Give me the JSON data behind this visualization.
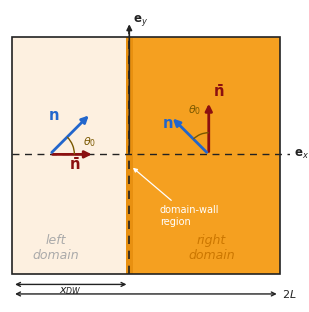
{
  "fig_width": 3.09,
  "fig_height": 3.12,
  "dpi": 100,
  "bg_color": "#ffffff",
  "left_domain_color": "#fdf0e0",
  "right_domain_color": "#f5a020",
  "domain_wall_color": "#e89010",
  "border_color": "#222222",
  "blue_arrow_color": "#2266cc",
  "red_arrow_color": "#8b1010",
  "annotation_color": "#ffffff",
  "theta0_color": "#7a5800",
  "axis_color": "#222222",
  "dw_line_color": "#222222",
  "left_domain_label": "left\ndomain",
  "right_domain_label": "right\ndomain",
  "dw_annotation": "domain-wall\nregion",
  "theta0_deg": 45
}
